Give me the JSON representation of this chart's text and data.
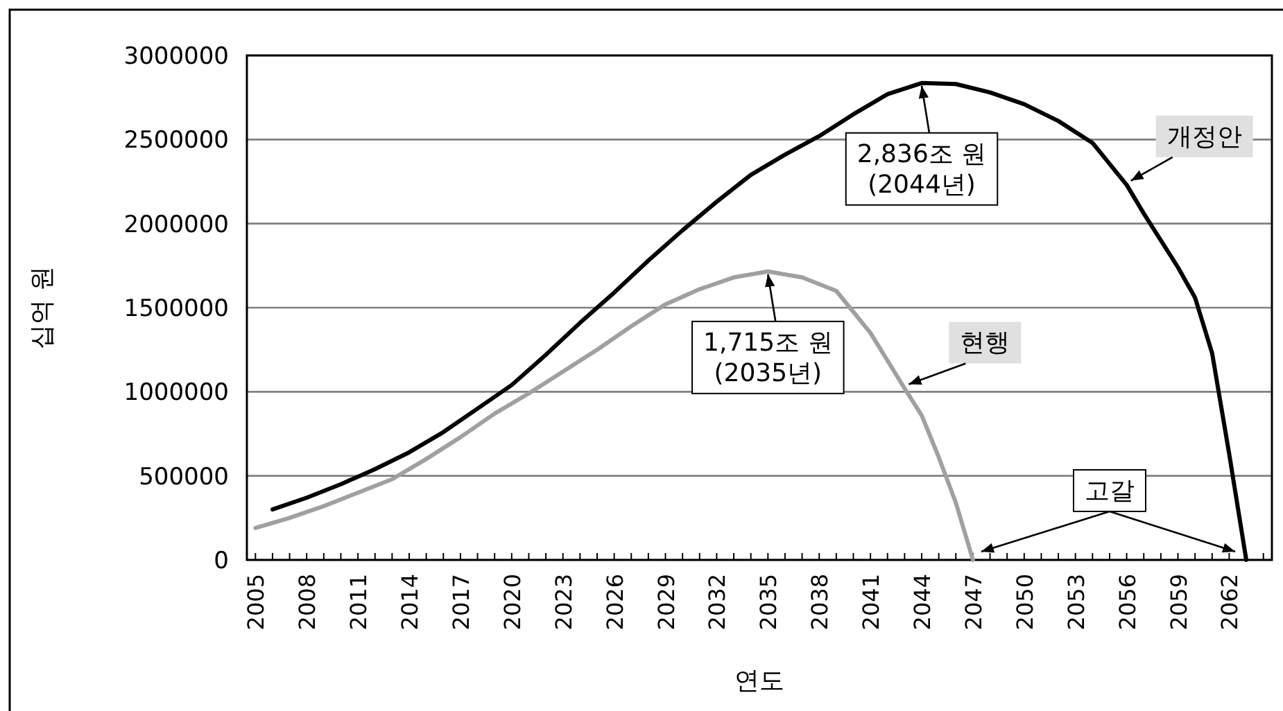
{
  "chart_data": {
    "type": "line",
    "xlabel": "연도",
    "ylabel": "십억 원",
    "xlim": [
      2004.5,
      2064.5
    ],
    "ylim": [
      0,
      3000000
    ],
    "yticks": [
      0,
      500000,
      1000000,
      1500000,
      2000000,
      2500000,
      3000000
    ],
    "xticks": [
      2005,
      {
        "value": 2006,
        "label": null
      },
      {
        "value": 2007,
        "label": null
      },
      2008,
      {
        "value": 2009,
        "label": null
      },
      {
        "value": 2010,
        "label": null
      },
      2011,
      {
        "value": 2012,
        "label": null
      },
      {
        "value": 2013,
        "label": null
      },
      2014,
      {
        "value": 2015,
        "label": null
      },
      {
        "value": 2016,
        "label": null
      },
      2017,
      {
        "value": 2018,
        "label": null
      },
      {
        "value": 2019,
        "label": null
      },
      2020,
      {
        "value": 2021,
        "label": null
      },
      {
        "value": 2022,
        "label": null
      },
      2023,
      {
        "value": 2024,
        "label": null
      },
      {
        "value": 2025,
        "label": null
      },
      2026,
      {
        "value": 2027,
        "label": null
      },
      {
        "value": 2028,
        "label": null
      },
      2029,
      {
        "value": 2030,
        "label": null
      },
      {
        "value": 2031,
        "label": null
      },
      2032,
      {
        "value": 2033,
        "label": null
      },
      {
        "value": 2034,
        "label": null
      },
      2035,
      {
        "value": 2036,
        "label": null
      },
      {
        "value": 2037,
        "label": null
      },
      2038,
      {
        "value": 2039,
        "label": null
      },
      {
        "value": 2040,
        "label": null
      },
      2041,
      {
        "value": 2042,
        "label": null
      },
      {
        "value": 2043,
        "label": null
      },
      2044,
      {
        "value": 2045,
        "label": null
      },
      {
        "value": 2046,
        "label": null
      },
      2047,
      {
        "value": 2048,
        "label": null
      },
      {
        "value": 2049,
        "label": null
      },
      2050,
      {
        "value": 2051,
        "label": null
      },
      {
        "value": 2052,
        "label": null
      },
      2053,
      {
        "value": 2054,
        "label": null
      },
      {
        "value": 2055,
        "label": null
      },
      2056,
      {
        "value": 2057,
        "label": null
      },
      {
        "value": 2058,
        "label": null
      },
      2059,
      {
        "value": 2060,
        "label": null
      },
      {
        "value": 2061,
        "label": null
      },
      2062,
      {
        "value": 2063,
        "label": null
      },
      {
        "value": 2064,
        "label": null
      }
    ],
    "grid": "y",
    "marker": "none",
    "series": [
      {
        "name": "개정안",
        "color": "#000000",
        "x": [
          2006,
          2008,
          2010,
          2012,
          2014,
          2016,
          2018,
          2020,
          2022,
          2024,
          2026,
          2028,
          2030,
          2032,
          2034,
          2036,
          2038,
          2040,
          2042,
          2044,
          2046,
          2048,
          2050,
          2052,
          2054,
          2056,
          2057,
          2058,
          2059,
          2060,
          2061,
          2062,
          2063
        ],
        "values": [
          300000,
          370000,
          450000,
          540000,
          640000,
          760000,
          900000,
          1040000,
          1220000,
          1410000,
          1590000,
          1780000,
          1960000,
          2130000,
          2290000,
          2410000,
          2520000,
          2650000,
          2770000,
          2836000,
          2830000,
          2780000,
          2710000,
          2610000,
          2480000,
          2230000,
          2060000,
          1900000,
          1740000,
          1560000,
          1230000,
          630000,
          0
        ]
      },
      {
        "name": "현행",
        "color": "#a0a0a0",
        "x": [
          2005,
          2007,
          2009,
          2011,
          2013,
          2015,
          2017,
          2019,
          2021,
          2023,
          2025,
          2027,
          2029,
          2031,
          2033,
          2035,
          2037,
          2039,
          2041,
          2043,
          2044,
          2045,
          2046,
          2047
        ],
        "values": [
          190000,
          250000,
          320000,
          400000,
          480000,
          600000,
          730000,
          870000,
          990000,
          1120000,
          1250000,
          1390000,
          1520000,
          1610000,
          1680000,
          1715000,
          1680000,
          1600000,
          1350000,
          1020000,
          860000,
          610000,
          340000,
          0
        ]
      }
    ],
    "annotations": [
      {
        "text": "2,836조 원\n(2044년)",
        "x": 2044,
        "y": 2836000
      },
      {
        "text": "1,715조 원\n(2035년)",
        "x": 2035,
        "y": 1715000
      },
      "고갈"
    ]
  }
}
